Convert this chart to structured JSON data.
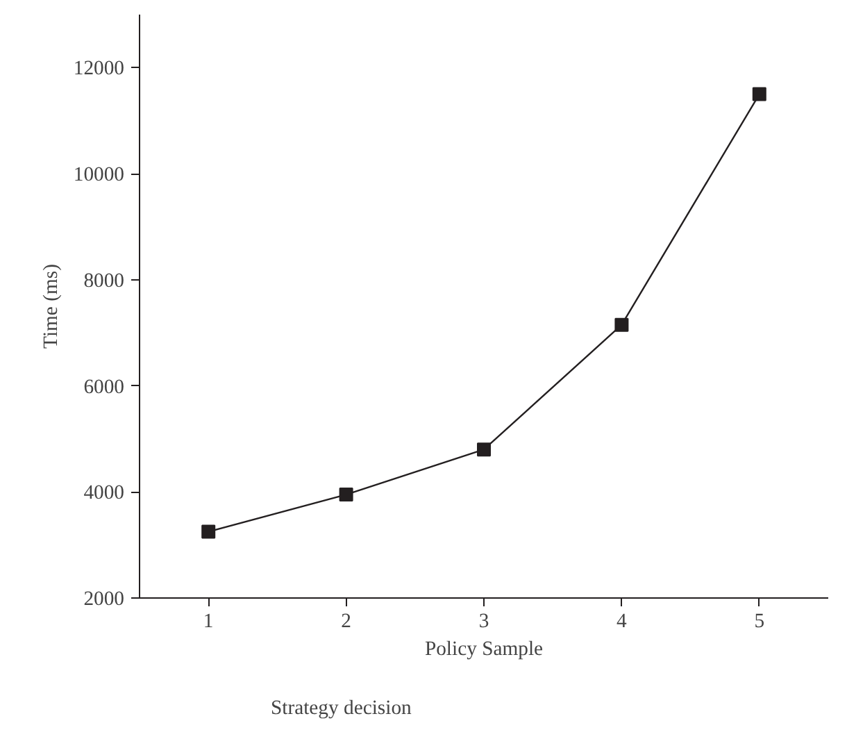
{
  "chart_data": {
    "type": "line",
    "xlabel": "Policy Sample",
    "ylabel": "Time (ms)",
    "x": [
      1,
      2,
      3,
      4,
      5
    ],
    "series": [
      {
        "name": "Strategy decision",
        "color": "#231f20",
        "values": [
          3250,
          3950,
          4800,
          7150,
          11500
        ]
      }
    ],
    "xlim": [
      0.5,
      5.5
    ],
    "xticks": [
      1,
      2,
      3,
      4,
      5
    ],
    "ylim": [
      2000,
      13000
    ],
    "yticks": [
      2000,
      4000,
      6000,
      8000,
      10000,
      12000
    ],
    "grid": false,
    "legend": "bottom left",
    "marker": "square",
    "line_style": "solid"
  }
}
